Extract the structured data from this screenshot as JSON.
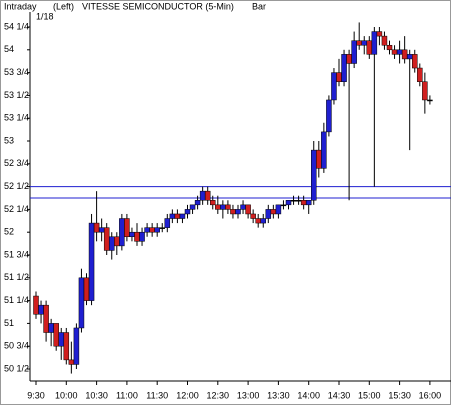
{
  "header": {
    "mode": "Intraday",
    "side": "(Left)",
    "title": "VITESSE SEMICONDUCTOR (5-Min)",
    "style": "Bar",
    "date": "1/18"
  },
  "chart_data": {
    "type": "candlestick",
    "categories": [
      "9:30",
      null,
      null,
      null,
      null,
      null,
      "10:00",
      null,
      null,
      null,
      null,
      null,
      "10:30",
      null,
      null,
      null,
      null,
      null,
      "11:00",
      null,
      null,
      null,
      null,
      null,
      "11:30",
      null,
      null,
      null,
      null,
      null,
      "12:00",
      null,
      null,
      null,
      null,
      null,
      "12:30",
      null,
      null,
      null,
      null,
      null,
      "13:00",
      null,
      null,
      null,
      null,
      null,
      "13:30",
      null,
      null,
      null,
      null,
      null,
      "14:00",
      null,
      null,
      null,
      null,
      null,
      "14:30",
      null,
      null,
      null,
      null,
      null,
      "15:00",
      null,
      null,
      null,
      null,
      null,
      "15:30",
      null,
      null,
      null,
      null,
      null,
      "16:00"
    ],
    "open": [
      51.3,
      51.1,
      51.2,
      50.9,
      51.0,
      50.75,
      50.9,
      50.6,
      50.55,
      50.95,
      51.5,
      51.25,
      52.1,
      52.0,
      52.05,
      51.8,
      51.95,
      51.85,
      52.15,
      51.95,
      52.0,
      51.9,
      52.0,
      52.05,
      52.0,
      52.05,
      52.05,
      52.15,
      52.2,
      52.15,
      52.2,
      52.25,
      52.3,
      52.35,
      52.45,
      52.35,
      52.3,
      52.25,
      52.3,
      52.25,
      52.2,
      52.25,
      52.3,
      52.2,
      52.15,
      52.1,
      52.15,
      52.25,
      52.2,
      52.3,
      52.3,
      52.35,
      52.35,
      52.35,
      52.3,
      52.35,
      52.9,
      52.7,
      53.1,
      53.45,
      53.75,
      53.65,
      53.95,
      53.85,
      54.1,
      54.05,
      54.1,
      53.95,
      54.2,
      54.15,
      54.05,
      54.0,
      53.95,
      54.0,
      53.9,
      53.95,
      53.8,
      53.65,
      53.45
    ],
    "high": [
      51.35,
      51.25,
      51.25,
      51.05,
      51.0,
      50.95,
      50.95,
      50.8,
      51.0,
      51.6,
      51.55,
      52.2,
      52.45,
      52.15,
      52.1,
      52.0,
      52.0,
      52.2,
      52.2,
      52.05,
      52.1,
      52.05,
      52.1,
      52.1,
      52.1,
      52.1,
      52.2,
      52.25,
      52.25,
      52.2,
      52.3,
      52.3,
      52.4,
      52.5,
      52.5,
      52.4,
      52.4,
      52.35,
      52.35,
      52.3,
      52.3,
      52.35,
      52.3,
      52.25,
      52.2,
      52.2,
      52.3,
      52.3,
      52.3,
      52.35,
      52.35,
      52.4,
      52.4,
      52.4,
      52.35,
      53.0,
      53.0,
      53.2,
      53.5,
      53.8,
      53.9,
      54.0,
      54.0,
      54.2,
      54.3,
      54.15,
      54.15,
      54.25,
      54.25,
      54.2,
      54.1,
      54.05,
      54.1,
      54.15,
      54.0,
      54.0,
      53.85,
      53.75,
      53.5
    ],
    "low": [
      51.05,
      51.0,
      50.8,
      50.75,
      50.7,
      50.6,
      50.55,
      50.45,
      50.5,
      50.9,
      51.2,
      51.2,
      51.9,
      51.9,
      51.75,
      51.7,
      51.75,
      51.8,
      51.9,
      51.9,
      51.85,
      51.85,
      51.95,
      51.95,
      51.95,
      52.0,
      52.0,
      52.1,
      52.1,
      52.1,
      52.15,
      52.2,
      52.25,
      52.3,
      52.3,
      52.25,
      52.2,
      52.15,
      52.2,
      52.15,
      52.15,
      52.2,
      52.15,
      52.1,
      52.05,
      52.05,
      52.1,
      52.15,
      52.15,
      52.25,
      52.25,
      52.3,
      52.3,
      52.25,
      52.2,
      52.3,
      52.6,
      52.65,
      53.05,
      53.4,
      53.6,
      53.6,
      52.35,
      53.8,
      54.0,
      53.95,
      53.9,
      52.5,
      54.05,
      54.0,
      53.95,
      53.9,
      53.85,
      53.85,
      52.9,
      53.75,
      53.6,
      53.3,
      53.4
    ],
    "close": [
      51.1,
      51.2,
      50.9,
      51.0,
      50.75,
      50.9,
      50.6,
      50.55,
      50.95,
      51.5,
      51.25,
      52.1,
      52.0,
      52.05,
      51.8,
      51.95,
      51.85,
      52.15,
      51.95,
      52.0,
      51.9,
      52.0,
      52.05,
      52.0,
      52.05,
      52.05,
      52.15,
      52.2,
      52.15,
      52.2,
      52.25,
      52.3,
      52.35,
      52.45,
      52.35,
      52.3,
      52.25,
      52.3,
      52.25,
      52.2,
      52.25,
      52.3,
      52.2,
      52.15,
      52.1,
      52.15,
      52.25,
      52.2,
      52.3,
      52.3,
      52.35,
      52.35,
      52.35,
      52.3,
      52.35,
      52.9,
      52.7,
      53.1,
      53.45,
      53.75,
      53.65,
      53.95,
      53.85,
      54.1,
      54.05,
      54.1,
      53.95,
      54.2,
      54.15,
      54.05,
      54.0,
      53.95,
      54.0,
      53.9,
      53.95,
      53.8,
      53.65,
      53.45,
      53.45
    ],
    "up_color": "#1f1fd0",
    "down_color": "#d01f1f",
    "reference_lines": [
      52.5,
      52.375
    ],
    "reference_color": "#1f1fd0",
    "ylim": [
      50.4,
      54.5
    ],
    "yticks": [
      {
        "value": 50.5,
        "label": "50 1/2"
      },
      {
        "value": 50.75,
        "label": "50 3/4"
      },
      51,
      {
        "value": 51.25,
        "label": "51 1/4"
      },
      {
        "value": 51.5,
        "label": "51 1/2"
      },
      {
        "value": 51.75,
        "label": "51 3/4"
      },
      52,
      {
        "value": 52.25,
        "label": "52 1/4"
      },
      {
        "value": 52.5,
        "label": "52 1/2"
      },
      {
        "value": 52.75,
        "label": "52 3/4"
      },
      53,
      {
        "value": 53.25,
        "label": "53 1/4"
      },
      {
        "value": 53.5,
        "label": "53 1/2"
      },
      {
        "value": 53.75,
        "label": "53 3/4"
      },
      54,
      {
        "value": 54.25,
        "label": "54 1/4"
      }
    ]
  }
}
